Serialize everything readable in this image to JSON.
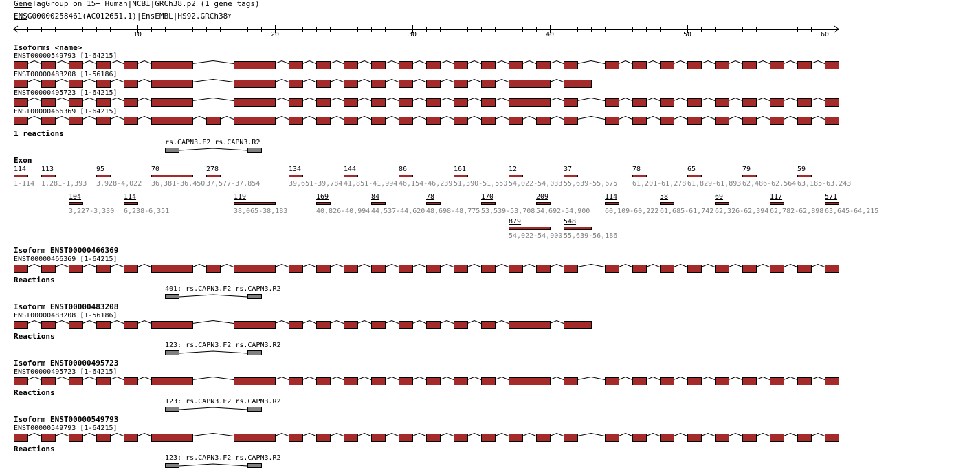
{
  "header": {
    "group_link": "Gene",
    "group_title": "TagGroup on 15+ Human|NCBI|GRCh38.p2 (1 gene tags)",
    "gene_link": "ENS",
    "gene_title": "G00000258461(AC012651.1)|EnsEMBL|HS92.GRCh38",
    "gene_menu_icon": "dropdown-icon"
  },
  "axis": {
    "ticks": [
      "10",
      "20",
      "30",
      "40",
      "50",
      "60"
    ],
    "unit_step": 1
  },
  "isoforms_heading": "Isoforms <name>",
  "isoforms": [
    {
      "id": "ENST00000549793",
      "label": "ENST00000549793 [1-64215]",
      "exons": [
        1,
        2,
        3,
        4,
        5,
        6,
        8,
        9,
        10,
        11,
        12,
        13,
        14,
        15,
        16,
        17,
        18,
        20,
        22,
        23,
        24,
        25,
        26,
        27,
        28,
        29,
        30
      ]
    },
    {
      "id": "ENST00000483208",
      "label": "ENST00000483208 [1-56186]",
      "exons": [
        1,
        2,
        3,
        4,
        5,
        6,
        8,
        9,
        10,
        11,
        12,
        13,
        14,
        15,
        16,
        19,
        21
      ]
    },
    {
      "id": "ENST00000495723",
      "label": "ENST00000495723 [1-64215]",
      "exons": [
        1,
        2,
        3,
        4,
        5,
        6,
        8,
        9,
        10,
        11,
        12,
        13,
        14,
        15,
        16,
        19,
        20,
        22,
        23,
        24,
        25,
        26,
        27,
        28,
        29,
        30
      ]
    },
    {
      "id": "ENST00000466369",
      "label": "ENST00000466369 [1-64215]",
      "exons": [
        1,
        2,
        3,
        4,
        5,
        6,
        7,
        8,
        9,
        10,
        11,
        12,
        13,
        14,
        15,
        16,
        17,
        18,
        20,
        22,
        23,
        24,
        25,
        26,
        27,
        28,
        29,
        30
      ]
    }
  ],
  "reactions_heading": "1 reactions",
  "reaction": {
    "forward": "rs.CAPN3.F2",
    "reverse": "rs.CAPN3.R2"
  },
  "exon_heading": "Exon",
  "exons": [
    {
      "id": 1,
      "len": "114",
      "range": "1-114"
    },
    {
      "id": 2,
      "len": "113",
      "range": "1,281-1,393"
    },
    {
      "id": 3,
      "len": "104",
      "range": "3,227-3,330"
    },
    {
      "id": 4,
      "len": "95",
      "range": "3,928-4,022"
    },
    {
      "id": 5,
      "len": "114",
      "range": "6,238-6,351"
    },
    {
      "id": 6,
      "len": "70",
      "range": "36,381-36,450"
    },
    {
      "id": 7,
      "len": "278",
      "range": "37,577-37,854"
    },
    {
      "id": 8,
      "len": "119",
      "range": "38,065-38,183"
    },
    {
      "id": 9,
      "len": "134",
      "range": "39,651-39,784"
    },
    {
      "id": 10,
      "len": "169",
      "range": "40,826-40,994"
    },
    {
      "id": 11,
      "len": "144",
      "range": "41,851-41,994"
    },
    {
      "id": 12,
      "len": "84",
      "range": "44,537-44,620"
    },
    {
      "id": 13,
      "len": "86",
      "range": "46,154-46,239"
    },
    {
      "id": 14,
      "len": "78",
      "range": "48,698-48,775"
    },
    {
      "id": 15,
      "len": "161",
      "range": "51,390-51,550"
    },
    {
      "id": 16,
      "len": "170",
      "range": "53,539-53,708"
    },
    {
      "id": 17,
      "len": "12",
      "range": "54,022-54,033"
    },
    {
      "id": 18,
      "len": "209",
      "range": "54,692-54,900"
    },
    {
      "id": 19,
      "len": "879",
      "range": "54,022-54,900"
    },
    {
      "id": 20,
      "len": "37",
      "range": "55,639-55,675"
    },
    {
      "id": 21,
      "len": "548",
      "range": "55,639-56,186"
    },
    {
      "id": 22,
      "len": "114",
      "range": "60,109-60,222"
    },
    {
      "id": 23,
      "len": "78",
      "range": "61,201-61,278"
    },
    {
      "id": 24,
      "len": "58",
      "range": "61,685-61,742"
    },
    {
      "id": 25,
      "len": "65",
      "range": "61,829-61,893"
    },
    {
      "id": 26,
      "len": "69",
      "range": "62,326-62,394"
    },
    {
      "id": 27,
      "len": "79",
      "range": "62,486-62,564"
    },
    {
      "id": 28,
      "len": "117",
      "range": "62,782-62,898"
    },
    {
      "id": 29,
      "len": "59",
      "range": "63,185-63,243"
    },
    {
      "id": 30,
      "len": "571",
      "range": "63,645-64,215"
    }
  ],
  "details": [
    {
      "heading": "Isoform ENST00000466369",
      "iso": 3,
      "reactions_label": "Reactions",
      "product": "401: rs.CAPN3.F2 rs.CAPN3.R2"
    },
    {
      "heading": "Isoform ENST00000483208",
      "iso": 1,
      "reactions_label": "Reactions",
      "product": "123: rs.CAPN3.F2 rs.CAPN3.R2"
    },
    {
      "heading": "Isoform ENST00000495723",
      "iso": 2,
      "reactions_label": "Reactions",
      "product": "123: rs.CAPN3.F2 rs.CAPN3.R2"
    },
    {
      "heading": "Isoform ENST00000549793",
      "iso": 0,
      "reactions_label": "Reactions",
      "product": "123: rs.CAPN3.F2 rs.CAPN3.R2"
    }
  ],
  "colors": {
    "exon": "#a52a2a",
    "primer": "#808080",
    "range_text": "#808080"
  }
}
